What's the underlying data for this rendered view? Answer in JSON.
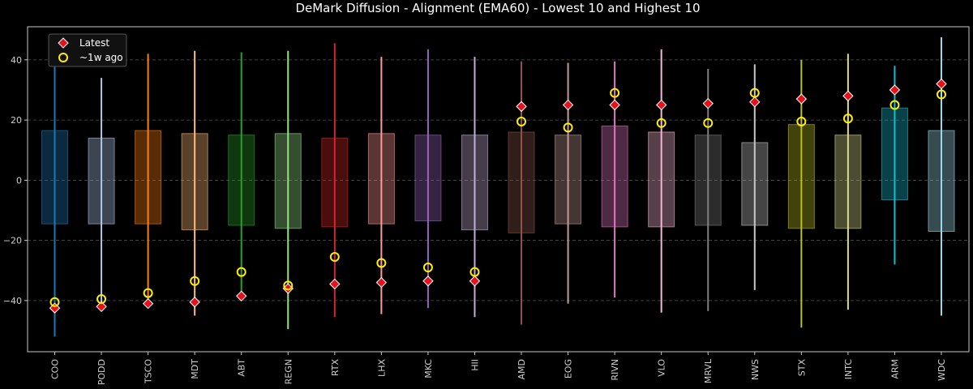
{
  "chart_data": {
    "type": "box-range",
    "title": "DeMark Diffusion - Alignment (EMA60) - Lowest 10 and Highest 10",
    "xlabel": "",
    "ylabel": "",
    "ylim": [
      -57,
      51
    ],
    "yticks": [
      -40,
      -20,
      0,
      20,
      40
    ],
    "grid": true,
    "legend": {
      "position": "top-left",
      "entries": [
        {
          "label": "Latest",
          "marker": "red-diamond"
        },
        {
          "label": "~1w ago",
          "marker": "yellow-circle"
        }
      ]
    },
    "series_fields": [
      "box_low",
      "box_high",
      "range_low",
      "range_high",
      "latest",
      "week_ago"
    ],
    "categories": [
      "COO",
      "PODD",
      "TSCO",
      "MDT",
      "ABT",
      "REGN",
      "RTX",
      "LHX",
      "MKC",
      "HII",
      "AMD",
      "EOG",
      "RIVN",
      "VLO",
      "MRVL",
      "NWS",
      "STX",
      "INTC",
      "ARM",
      "WDC"
    ],
    "colors": [
      "#1f77b4",
      "#aec7e8",
      "#ff7f0e",
      "#ffbb78",
      "#2ca02c",
      "#98df8a",
      "#d62728",
      "#ff9896",
      "#9467bd",
      "#c5b0d5",
      "#8c564b",
      "#c49c94",
      "#e377c2",
      "#f7b6d2",
      "#7f7f7f",
      "#c7c7c7",
      "#bcbd22",
      "#dbdb8d",
      "#17becf",
      "#9edae5"
    ],
    "box_low": [
      -14.5,
      -14.5,
      -14.5,
      -16.5,
      -15,
      -16,
      -15.5,
      -14.5,
      -13.5,
      -16.5,
      -17.5,
      -14.5,
      -15.5,
      -15.5,
      -15,
      -15,
      -16,
      -16,
      -6.5,
      -17
    ],
    "box_high": [
      16.5,
      14,
      16.5,
      15.5,
      15,
      15.5,
      14,
      15.5,
      15,
      15,
      16,
      15,
      18,
      16,
      15,
      12.5,
      18.5,
      15,
      24,
      16.5
    ],
    "range_low": [
      -52,
      -41,
      -41,
      -45,
      -38,
      -49.5,
      -45.5,
      -44.5,
      -42.5,
      -45.5,
      -48,
      -41,
      -39,
      -44,
      -43.5,
      -36.5,
      -49,
      -43,
      -28,
      -45
    ],
    "range_high": [
      42.5,
      34,
      42,
      43,
      42.5,
      43,
      45.5,
      41,
      43.5,
      41,
      39.5,
      39,
      39.5,
      43.5,
      37,
      38.5,
      40,
      42,
      38,
      47.5
    ],
    "latest": [
      -42.5,
      -42,
      -41,
      -40.5,
      -38.5,
      -36,
      -34.5,
      -34,
      -33.5,
      -33.5,
      24.5,
      25,
      25,
      25,
      25.5,
      26,
      27,
      28,
      30,
      32
    ],
    "week_ago": [
      -40.5,
      -39.5,
      -37.5,
      -33.5,
      -30.5,
      -35,
      -25.5,
      -27.5,
      -29,
      -30.5,
      19.5,
      17.5,
      29,
      19,
      19,
      29,
      19.5,
      20.5,
      25,
      28.5
    ]
  }
}
